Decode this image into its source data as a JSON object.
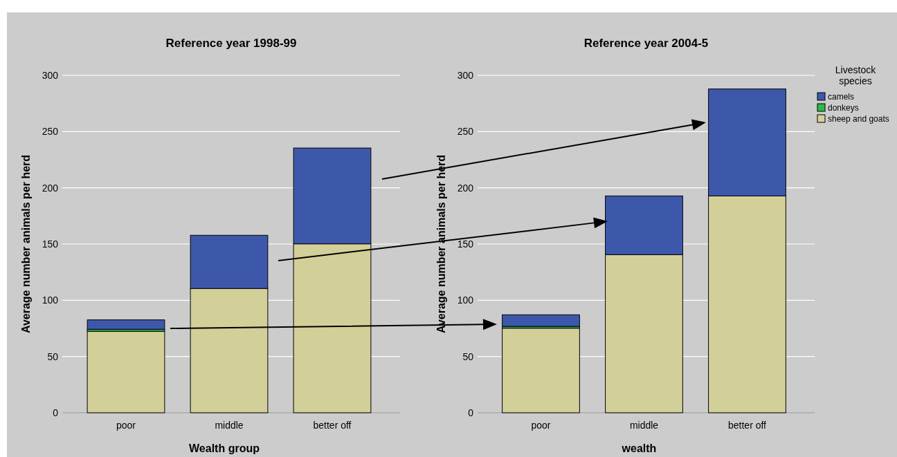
{
  "chart_data": [
    {
      "type": "bar",
      "title": "Reference year 1998-99",
      "xlabel": "Wealth group",
      "ylabel": "Average number animals per herd",
      "categories": [
        "poor",
        "middle",
        "better off"
      ],
      "stacked": true,
      "ylim": [
        0,
        300
      ],
      "yticks": [
        0,
        50,
        100,
        150,
        200,
        250,
        300
      ],
      "grid": "y",
      "legend": false,
      "series": [
        {
          "color": "#d3cf98",
          "values": [
            72.4,
            110.5,
            150.2
          ]
        },
        {
          "color": "#2db84a",
          "values": [
            1.8,
            null,
            null
          ]
        },
        {
          "color": "#3d58ab",
          "values": [
            8.4,
            47.3,
            85.2
          ]
        }
      ]
    },
    {
      "type": "bar",
      "title": "Reference year 2004-5",
      "xlabel": "wealth",
      "ylabel": "Average number animals per herd",
      "legend_title": "Livestock species",
      "categories": [
        "poor",
        "middle",
        "better off"
      ],
      "stacked": true,
      "ylim": [
        0,
        300
      ],
      "yticks": [
        0,
        50,
        100,
        150,
        200,
        250,
        300
      ],
      "grid": "y",
      "legend": "right",
      "series": [
        {
          "name": "sheep and goats",
          "color": "#d3cf98",
          "values": [
            75.2,
            140.6,
            192.8
          ]
        },
        {
          "name": "donkeys",
          "color": "#2db84a",
          "values": [
            1.6,
            null,
            null
          ]
        },
        {
          "name": "camels",
          "color": "#3d58ab",
          "values": [
            10.3,
            52.2,
            95.1
          ]
        }
      ]
    }
  ]
}
